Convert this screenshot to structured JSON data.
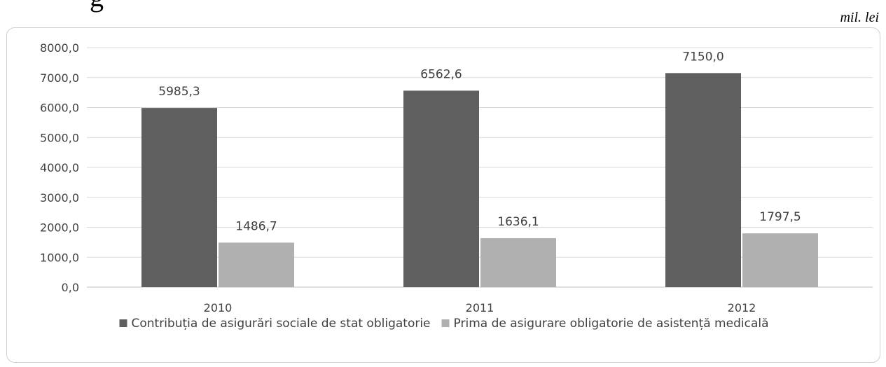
{
  "page": {
    "title_fragment": "g",
    "unit": "mil. lei"
  },
  "chart_data": {
    "type": "bar",
    "categories": [
      "2010",
      "2011",
      "2012"
    ],
    "series": [
      {
        "name": "Contribuția de asigurări sociale de stat obligatorie",
        "values": [
          5985.3,
          6562.6,
          7150.0
        ],
        "labels": [
          "5985,3",
          "6562,6",
          "7150,0"
        ],
        "color": "#5f5f5f"
      },
      {
        "name": "Prima de asigurare obligatorie de asistență medicală",
        "values": [
          1486.7,
          1636.1,
          1797.5
        ],
        "labels": [
          "1486,7",
          "1636,1",
          "1797,5"
        ],
        "color": "#b0b0b0"
      }
    ],
    "ylim": [
      0,
      8000
    ],
    "yticks": [
      0,
      1000,
      2000,
      3000,
      4000,
      5000,
      6000,
      7000,
      8000
    ],
    "ytick_labels": [
      "0,0",
      "1000,0",
      "2000,0",
      "3000,0",
      "4000,0",
      "5000,0",
      "6000,0",
      "7000,0",
      "8000,0"
    ],
    "grid": true,
    "legend": "bottom",
    "xlabel": "",
    "ylabel": ""
  }
}
